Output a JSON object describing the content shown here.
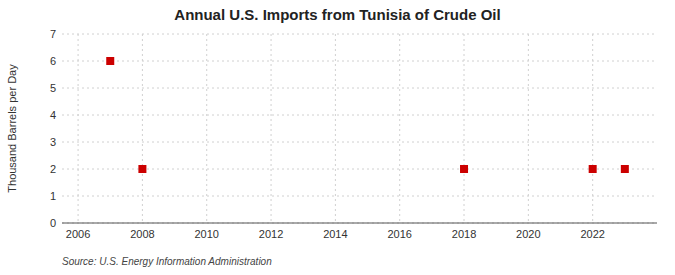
{
  "chart_data": {
    "type": "scatter",
    "title": "Annual U.S. Imports from Tunisia of Crude Oil",
    "y_label": "Thousand Barrels per Day",
    "annotation": "Source: U.S. Energy Information Administration",
    "x": [
      2007,
      2008,
      2018,
      2022,
      2023
    ],
    "values": [
      6,
      2,
      2,
      2,
      2
    ],
    "color": "#cc0000",
    "marker": "square",
    "xlim": [
      2005.5,
      2024.0
    ],
    "ylim": [
      0,
      7
    ],
    "xticks": [
      2006,
      2008,
      2010,
      2012,
      2014,
      2016,
      2018,
      2020,
      2022
    ],
    "yticks": [
      0,
      1,
      2,
      3,
      4,
      5,
      6,
      7
    ],
    "grid": true
  }
}
